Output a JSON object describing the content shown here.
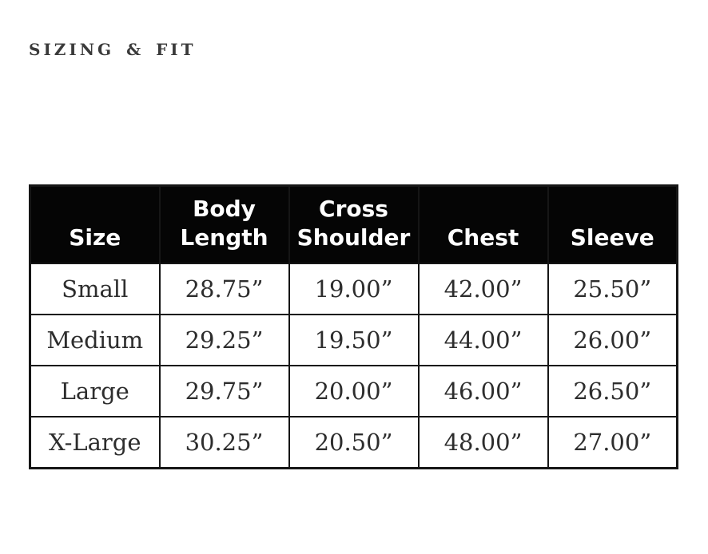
{
  "page": {
    "background": "#ffffff"
  },
  "heading": {
    "text": "SIZING & FIT",
    "color": "#3a3a3a"
  },
  "chart_data": {
    "type": "table",
    "title": "SIZING & FIT",
    "columns": [
      "Size",
      "Body Length",
      "Cross Shoulder",
      "Chest",
      "Sleeve"
    ],
    "rows": [
      [
        "Small",
        "28.75”",
        "19.00”",
        "42.00”",
        "25.50”"
      ],
      [
        "Medium",
        "29.25”",
        "19.50”",
        "44.00”",
        "26.00”"
      ],
      [
        "Large",
        "29.75”",
        "20.00”",
        "46.00”",
        "26.50”"
      ],
      [
        "X-Large",
        "30.25”",
        "20.50”",
        "48.00”",
        "27.00”"
      ]
    ],
    "numeric_series": {
      "sizes": [
        "Small",
        "Medium",
        "Large",
        "X-Large"
      ],
      "body_length_in": [
        28.75,
        29.25,
        29.75,
        30.25
      ],
      "cross_shoulder_in": [
        19.0,
        19.5,
        20.0,
        20.5
      ],
      "chest_in": [
        42.0,
        44.0,
        46.0,
        48.0
      ],
      "sleeve_in": [
        25.5,
        26.0,
        26.5,
        27.0
      ]
    },
    "layout": {
      "header_position": "top",
      "grid": true
    }
  },
  "colors": {
    "page_bg": "#ffffff",
    "heading_text": "#3a3a3a",
    "table_header_bg": "#050505",
    "table_header_text": "#ffffff",
    "table_body_text": "#2d2d2d",
    "table_border": "#161616"
  }
}
